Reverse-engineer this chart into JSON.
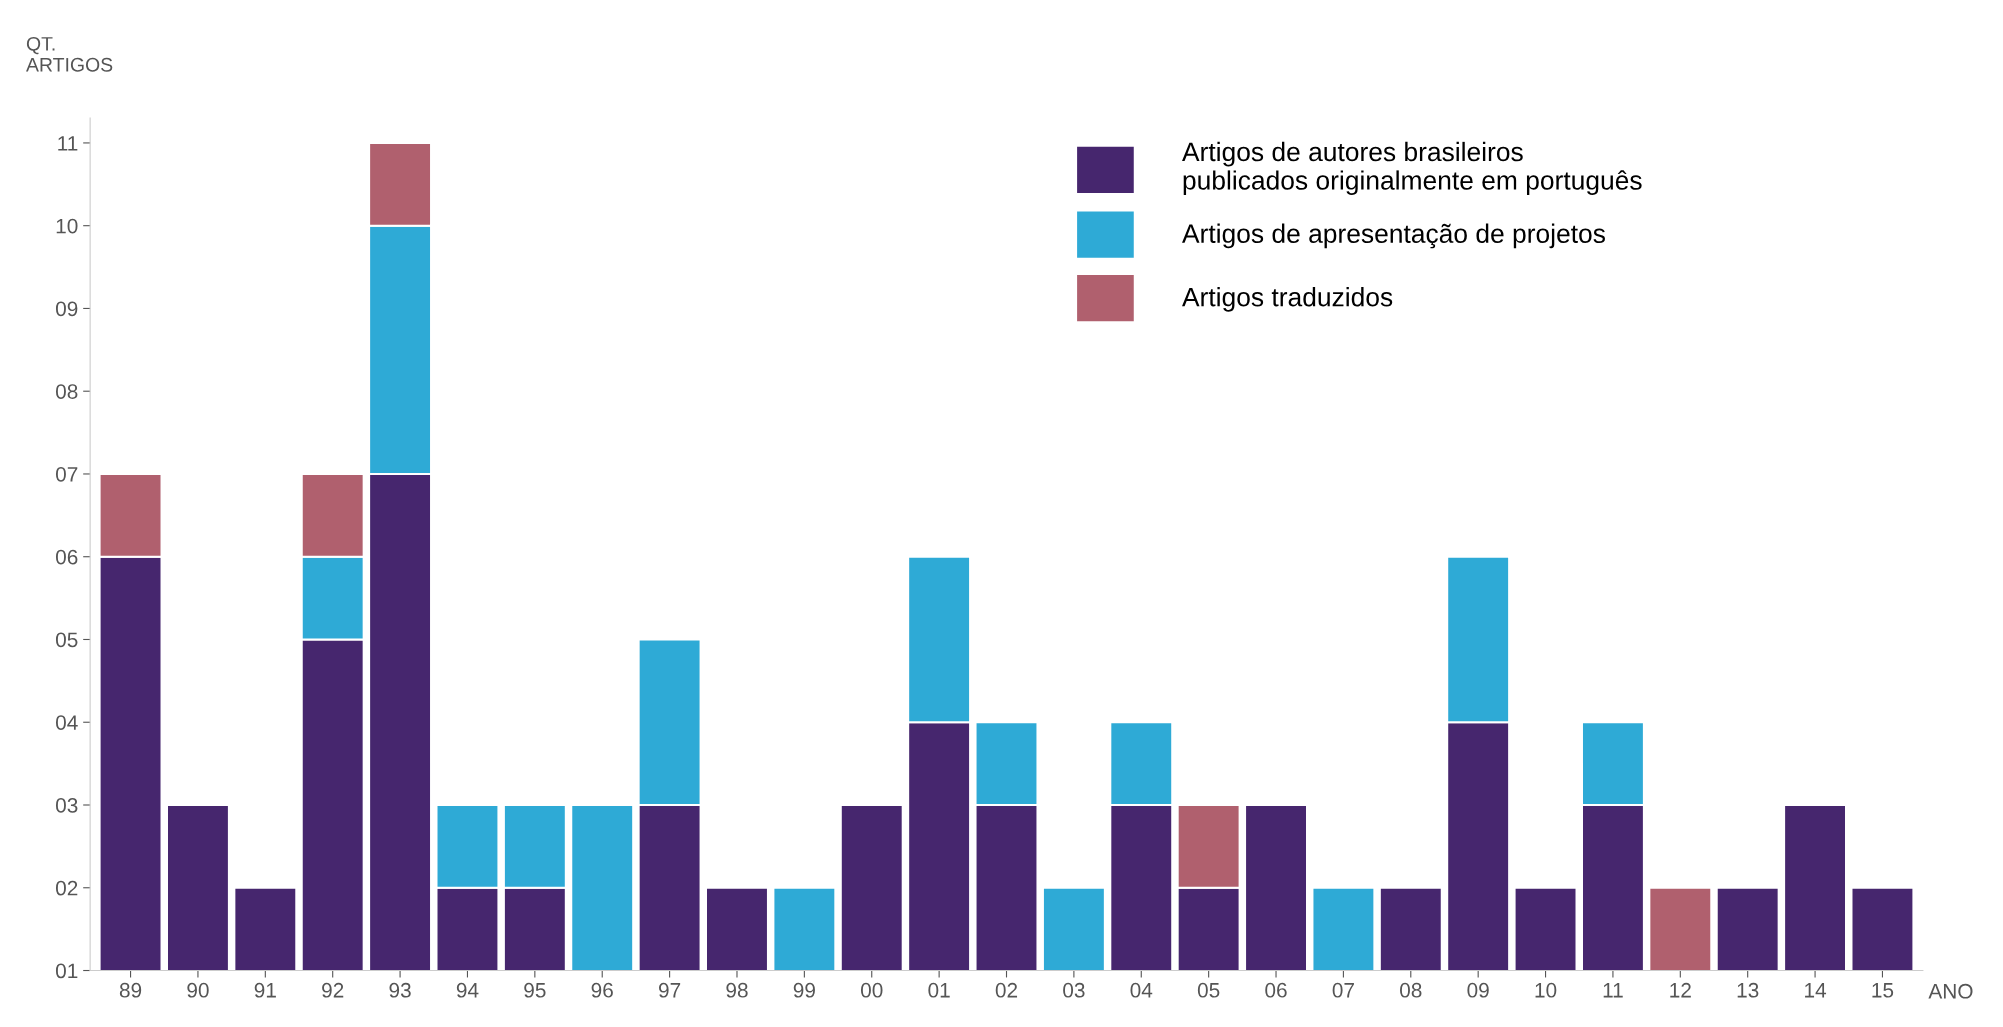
{
  "chart_data": {
    "type": "bar",
    "stacked": true,
    "ylabel": "QT.\nARTIGOS",
    "xlabel": "ANO",
    "categories": [
      "89",
      "90",
      "91",
      "92",
      "93",
      "94",
      "95",
      "96",
      "97",
      "98",
      "99",
      "00",
      "01",
      "02",
      "03",
      "04",
      "05",
      "06",
      "07",
      "08",
      "09",
      "10",
      "11",
      "12",
      "13",
      "14",
      "15"
    ],
    "series": [
      {
        "name": "Artigos de autores brasileiros\npublicados originalmente em português",
        "color": "#46266e",
        "values": [
          6,
          3,
          2,
          5,
          7,
          2,
          2,
          null,
          3,
          2,
          null,
          3,
          4,
          3,
          null,
          3,
          2,
          3,
          null,
          2,
          4,
          2,
          3,
          null,
          2,
          3,
          2
        ]
      },
      {
        "name": "Artigos de apresentação de projetos",
        "color": "#2eaad6",
        "values": [
          null,
          null,
          null,
          1,
          3,
          1,
          1,
          3,
          2,
          null,
          2,
          null,
          2,
          1,
          2,
          1,
          null,
          null,
          2,
          null,
          2,
          null,
          1,
          null,
          null,
          null,
          null
        ]
      },
      {
        "name": "Artigos traduzidos",
        "color": "#b0606e",
        "values": [
          1,
          null,
          null,
          1,
          1,
          null,
          null,
          null,
          null,
          null,
          null,
          null,
          null,
          null,
          null,
          null,
          1,
          null,
          null,
          null,
          null,
          null,
          null,
          2,
          null,
          null,
          null
        ]
      }
    ],
    "ylim": [
      1,
      11.3
    ],
    "yticks": [
      {
        "value": 1,
        "label": "01"
      },
      {
        "value": 2,
        "label": "02"
      },
      {
        "value": 3,
        "label": "03"
      },
      {
        "value": 4,
        "label": "04"
      },
      {
        "value": 5,
        "label": "05"
      },
      {
        "value": 6,
        "label": "06"
      },
      {
        "value": 7,
        "label": "07"
      },
      {
        "value": 8,
        "label": "08"
      },
      {
        "value": 9,
        "label": "09"
      },
      {
        "value": 10,
        "label": "10"
      },
      {
        "value": 11,
        "label": "11"
      }
    ],
    "grid": false,
    "legend": "top right"
  }
}
